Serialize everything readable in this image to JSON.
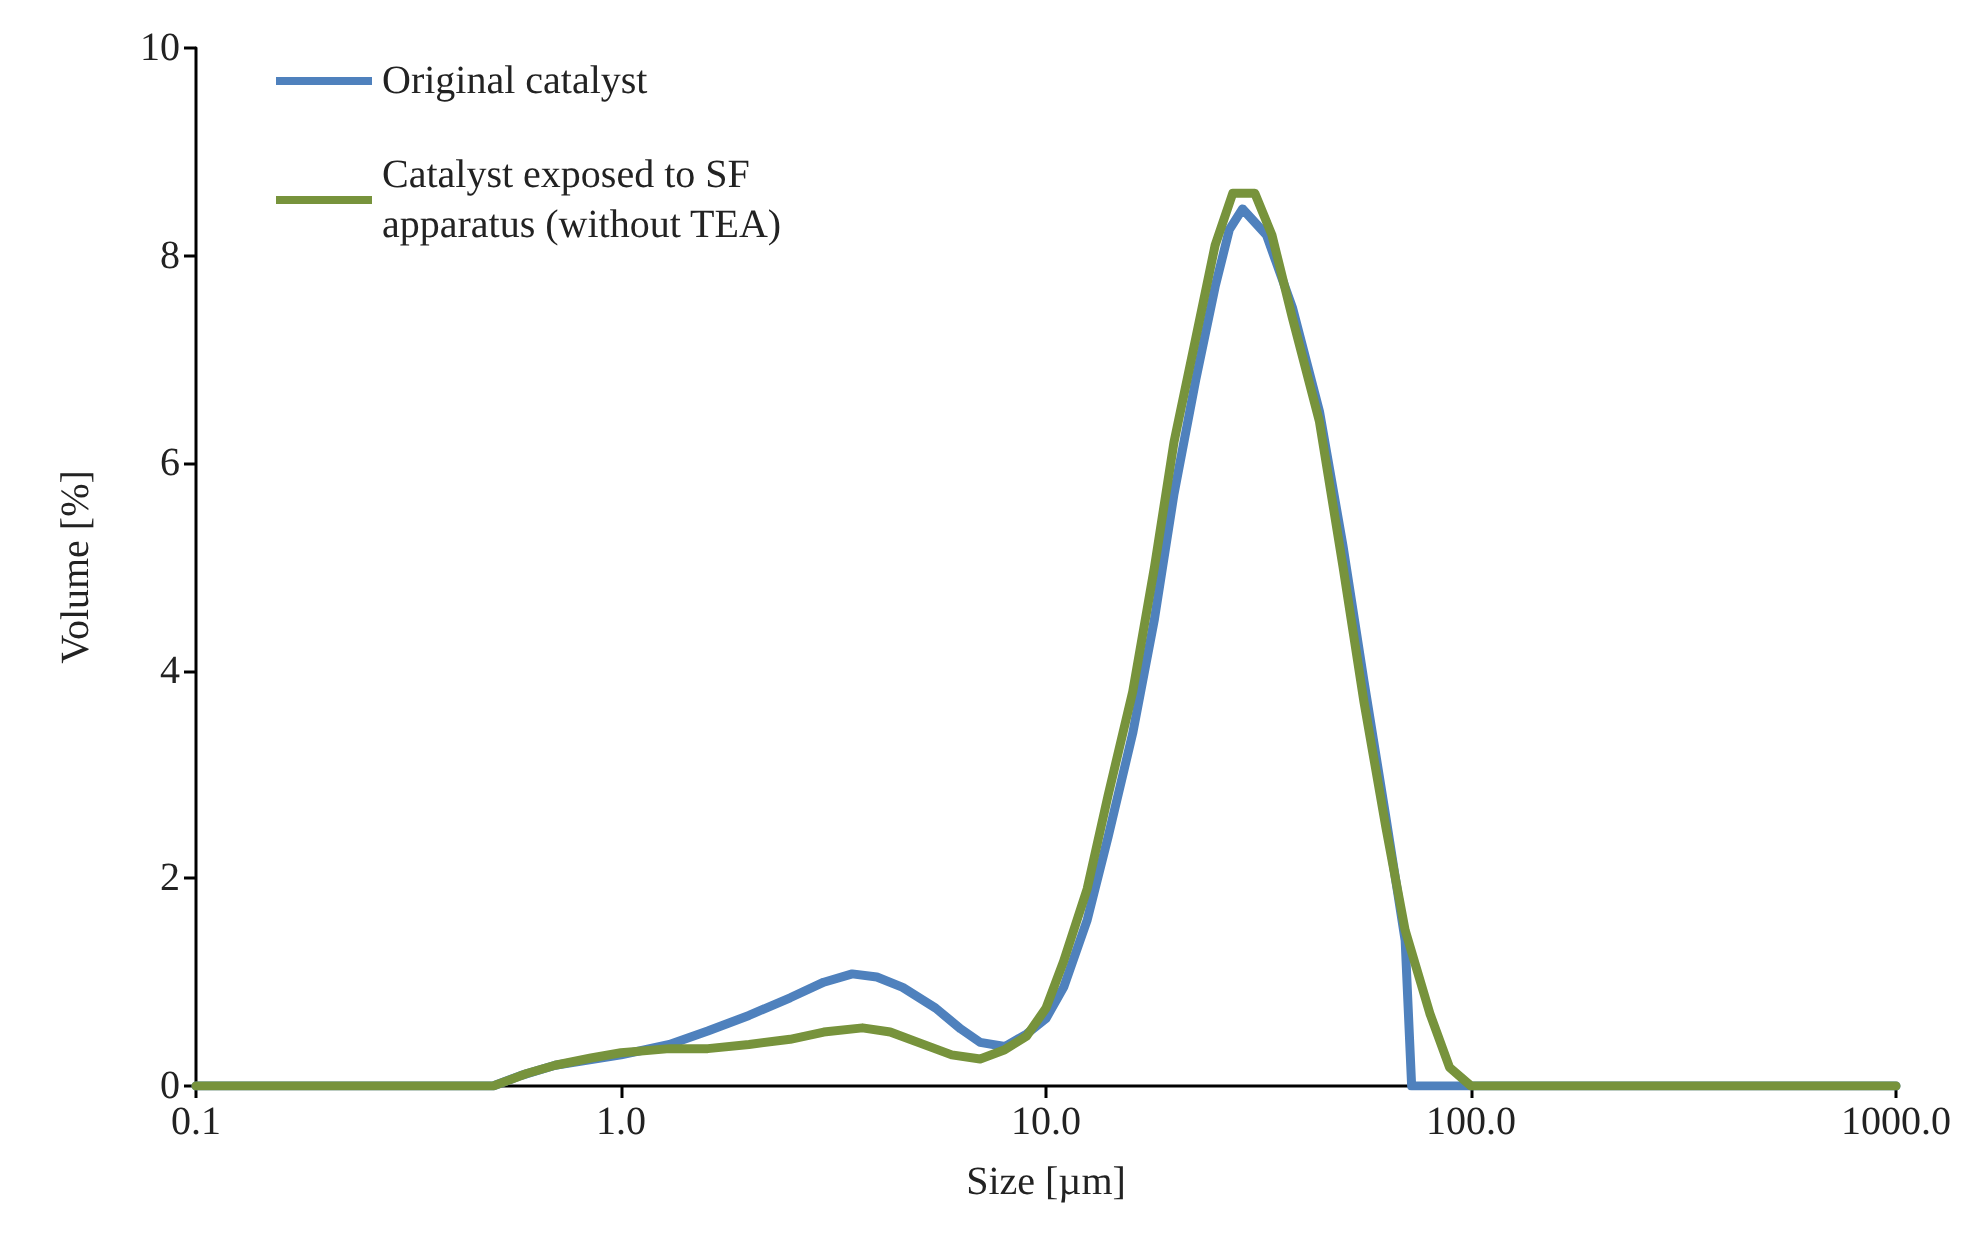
{
  "chart_data": {
    "type": "line",
    "xlabel": "Size [µm]",
    "ylabel": "Volume [%]",
    "log": "x",
    "grid": false,
    "legend": "top left",
    "marker": "none",
    "line_style": "solid",
    "xlim": [
      0.1,
      1000
    ],
    "xticks": [
      0.1,
      {
        "value": 1,
        "label": "1.0"
      },
      {
        "value": 10,
        "label": "10.0"
      },
      {
        "value": 100,
        "label": "100.0"
      },
      {
        "value": 1000,
        "label": "1000.0"
      }
    ],
    "ylim": [
      0,
      10
    ],
    "yticks": [
      0,
      2,
      4,
      6,
      8,
      10
    ],
    "series": [
      {
        "name": "Original catalyst",
        "color": "#4f81bd",
        "x": [
          0.1,
          0.5,
          0.58,
          0.7,
          1.0,
          1.3,
          1.6,
          2.0,
          2.5,
          3.0,
          3.5,
          4.0,
          4.6,
          5.5,
          6.3,
          7.0,
          8.0,
          9.0,
          10,
          11,
          12.5,
          14,
          16,
          18,
          20,
          22.5,
          25,
          27,
          29,
          33,
          38,
          44,
          50,
          56,
          63,
          70,
          72.5,
          80,
          100,
          1000
        ],
        "values": [
          0,
          0,
          0.1,
          0.2,
          0.3,
          0.4,
          0.53,
          0.68,
          0.85,
          1.0,
          1.08,
          1.05,
          0.95,
          0.75,
          0.55,
          0.42,
          0.38,
          0.5,
          0.65,
          0.95,
          1.6,
          2.4,
          3.4,
          4.5,
          5.7,
          6.8,
          7.7,
          8.25,
          8.45,
          8.2,
          7.5,
          6.5,
          5.2,
          3.9,
          2.6,
          1.4,
          0,
          0,
          0,
          0
        ]
      },
      {
        "name": "Catalyst exposed to SF apparatus (without TEA)",
        "color": "#77933c",
        "x": [
          0.1,
          0.5,
          0.6,
          0.7,
          0.85,
          1.0,
          1.3,
          1.6,
          2.0,
          2.5,
          3.0,
          3.7,
          4.3,
          5.0,
          6.0,
          7.0,
          8.0,
          9.0,
          10,
          11,
          12.5,
          14,
          16,
          18,
          20,
          22.5,
          25,
          27.5,
          31,
          34,
          38,
          44,
          50,
          56,
          63,
          70,
          80,
          89,
          100,
          1000
        ],
        "values": [
          0,
          0,
          0.12,
          0.2,
          0.27,
          0.32,
          0.36,
          0.36,
          0.4,
          0.45,
          0.52,
          0.56,
          0.52,
          0.42,
          0.3,
          0.26,
          0.35,
          0.48,
          0.75,
          1.2,
          1.9,
          2.8,
          3.8,
          5.0,
          6.2,
          7.2,
          8.1,
          8.6,
          8.6,
          8.2,
          7.4,
          6.4,
          5.0,
          3.7,
          2.5,
          1.5,
          0.7,
          0.18,
          0,
          0
        ]
      }
    ]
  }
}
